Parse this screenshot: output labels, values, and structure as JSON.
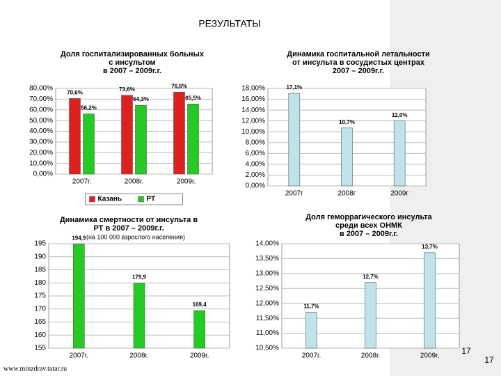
{
  "title": "РЕЗУЛЬТАТЫ",
  "footer": "www.minzdrav.tatar.ru",
  "page_number": "17",
  "chart_data": [
    {
      "type": "bar",
      "title": [
        "Доля госпитализированных больных",
        "с инсультом",
        "в 2007 – 2009г.г."
      ],
      "categories": [
        "2007г.",
        "2008г.",
        "2009г."
      ],
      "series": [
        {
          "name": "Казань",
          "color": "#e0201c",
          "values": [
            70.6,
            73.6,
            76.6
          ],
          "value_labels": [
            "70,6%",
            "73,6%",
            "76,6%"
          ]
        },
        {
          "name": "РТ",
          "color": "#22cc22",
          "values": [
            56.2,
            64.3,
            65.5
          ],
          "value_labels": [
            "56,2%",
            "64,3%",
            "65,5%"
          ]
        }
      ],
      "ylim": [
        0,
        80
      ],
      "yticks": [
        {
          "value": 0,
          "label": "0,00%"
        },
        {
          "value": 10,
          "label": "10,00%"
        },
        {
          "value": 20,
          "label": "20,00%"
        },
        {
          "value": 30,
          "label": "30,00%"
        },
        {
          "value": 40,
          "label": "40,00%"
        },
        {
          "value": 50,
          "label": "50,00%"
        },
        {
          "value": 60,
          "label": "60,00%"
        },
        {
          "value": 70,
          "label": "70,00%"
        },
        {
          "value": 80,
          "label": "80,00%"
        }
      ],
      "grid": true,
      "legend": "bottom"
    },
    {
      "type": "bar",
      "title": [
        "Динамика госпитальной летальности",
        "от инсульта в сосудистых центрах",
        "2007 – 2009г.г."
      ],
      "categories": [
        "2007г",
        "2008г",
        "2009г"
      ],
      "color": "#bfe3ea",
      "values": [
        17.1,
        10.7,
        12.0
      ],
      "value_labels": [
        "17,1%",
        "10,7%",
        "12,0%"
      ],
      "ylim": [
        0,
        18
      ],
      "yticks": [
        {
          "value": 0,
          "label": "0,00%"
        },
        {
          "value": 2,
          "label": "2,00%"
        },
        {
          "value": 4,
          "label": "4,00%"
        },
        {
          "value": 6,
          "label": "6,00%"
        },
        {
          "value": 8,
          "label": "8,00%"
        },
        {
          "value": 10,
          "label": "10,00%"
        },
        {
          "value": 12,
          "label": "12,00%"
        },
        {
          "value": 14,
          "label": "14,00%"
        },
        {
          "value": 16,
          "label": "16,00%"
        },
        {
          "value": 18,
          "label": "18,00%"
        }
      ],
      "grid": true
    },
    {
      "type": "bar",
      "title": [
        "Динамика смертности от инсульта в",
        "РТ в 2007 – 2009г.г."
      ],
      "subtitle": "(на 100 000 взрослого населения)",
      "categories": [
        "2007г.",
        "2008г.",
        "2009г."
      ],
      "color": "#22cc22",
      "values": [
        194.9,
        179.9,
        169.4
      ],
      "value_labels": [
        "194,9",
        "179,9",
        "169,4"
      ],
      "ylim": [
        155,
        195
      ],
      "yticks": [
        155,
        160,
        165,
        170,
        175,
        180,
        185,
        190,
        195
      ],
      "grid": true
    },
    {
      "type": "bar",
      "title": [
        "Доля геморрагического инсульта",
        "среди всех ОНМК",
        "в 2007 – 2009г.г."
      ],
      "categories": [
        "2007г.",
        "2008г.",
        "2009г."
      ],
      "color": "#bfe3ea",
      "values": [
        11.7,
        12.7,
        13.7
      ],
      "value_labels": [
        "11,7%",
        "12,7%",
        "13,7%"
      ],
      "ylim": [
        10.5,
        14
      ],
      "yticks": [
        {
          "value": 10.5,
          "label": "10,50%"
        },
        {
          "value": 11,
          "label": "11,00%"
        },
        {
          "value": 11.5,
          "label": "11,50%"
        },
        {
          "value": 12,
          "label": "12,00%"
        },
        {
          "value": 12.5,
          "label": "12,50%"
        },
        {
          "value": 13,
          "label": "13,00%"
        },
        {
          "value": 13.5,
          "label": "13,50%"
        },
        {
          "value": 14,
          "label": "14,00%"
        }
      ],
      "grid": true
    }
  ]
}
